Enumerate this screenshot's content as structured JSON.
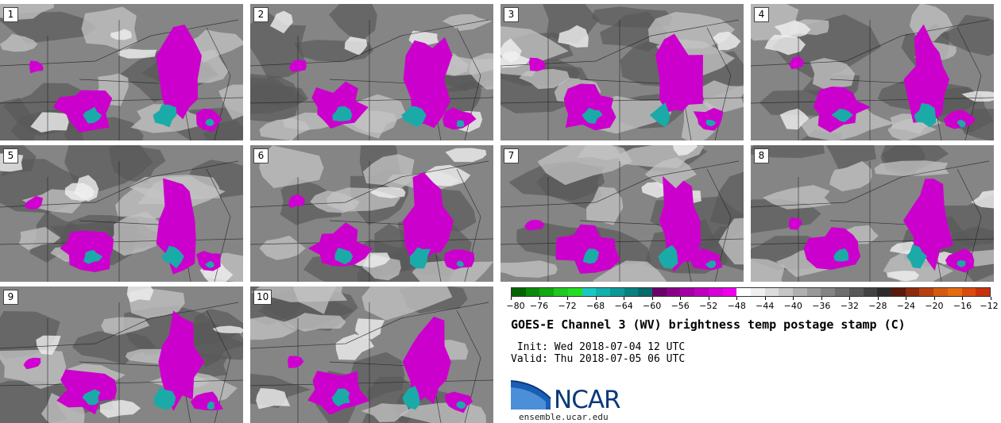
{
  "panels": [
    "1",
    "2",
    "3",
    "4",
    "5",
    "6",
    "7",
    "8",
    "9",
    "10"
  ],
  "colorbar": {
    "colors": [
      "#006400",
      "#0a8a0a",
      "#11a811",
      "#1fc81f",
      "#22dd22",
      "#19c8c0",
      "#12b0ae",
      "#0c9896",
      "#078080",
      "#056a6a",
      "#6a006a",
      "#880088",
      "#a400a4",
      "#bf00bf",
      "#d800d8",
      "#ee00ee",
      "#ffffff",
      "#f0f0f0",
      "#dcdcdc",
      "#c6c6c6",
      "#b0b0b0",
      "#9a9a9a",
      "#848484",
      "#6e6e6e",
      "#585858",
      "#424242",
      "#2c2c2c",
      "#5a1a0a",
      "#8b2a0c",
      "#b8400e",
      "#d45a0f",
      "#e86a10",
      "#dc4a0e",
      "#c8320a"
    ],
    "tick_labels": [
      "-80",
      "-76",
      "-72",
      "-68",
      "-64",
      "-60",
      "-56",
      "-52",
      "-48",
      "-44",
      "-40",
      "-36",
      "-32",
      "-28",
      "-24",
      "-20",
      "-16",
      "-12"
    ],
    "tick_values": [
      -80,
      -76,
      -72,
      -68,
      -64,
      -60,
      -56,
      -52,
      -48,
      -44,
      -40,
      -36,
      -32,
      -28,
      -24,
      -20,
      -16,
      -12
    ],
    "range": [
      -80,
      -12
    ]
  },
  "title": "GOES-E Channel 3 (WV) brightness temp postage stamp (C)",
  "init": " Init: Wed 2018-07-04 12 UTC",
  "valid": "Valid: Thu 2018-07-05 06 UTC",
  "logo": {
    "name": "NCAR",
    "url": "ensemble.ucar.edu",
    "color": "#0b3a78"
  }
}
